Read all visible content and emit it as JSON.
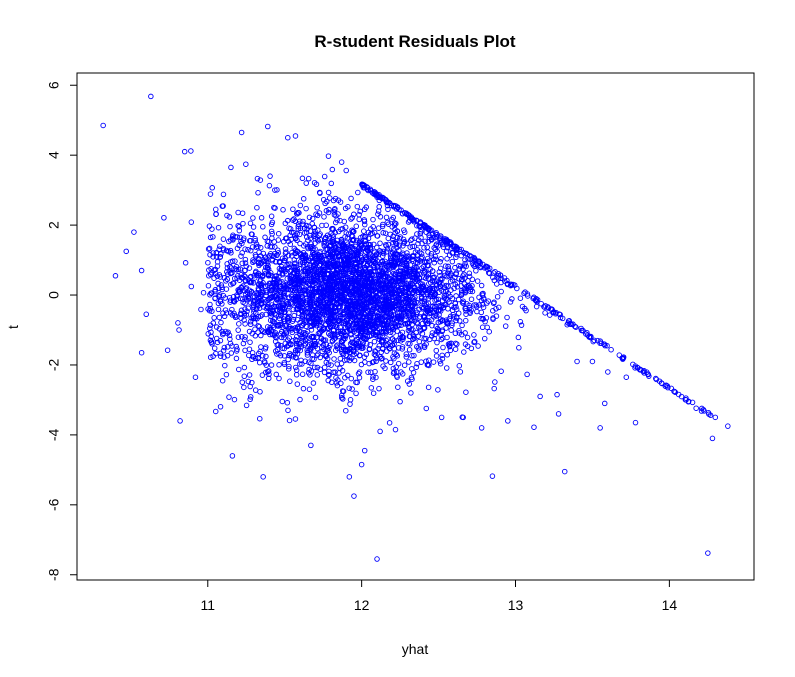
{
  "chart_data": {
    "type": "scatter",
    "title": "R-student Residuals Plot",
    "xlabel": "yhat",
    "ylabel": "t",
    "xlim": [
      10.15,
      14.55
    ],
    "ylim": [
      -8.15,
      6.35
    ],
    "x_ticks": [
      11,
      12,
      13,
      14
    ],
    "y_ticks": [
      -8,
      -6,
      -4,
      -2,
      0,
      2,
      4,
      6
    ],
    "marker_color": "#0000ff",
    "background": "#ffffff",
    "grid": false,
    "legend": "none",
    "upper_boundary_line": {
      "x_start": 12.0,
      "t_start": 3.2,
      "x_end": 14.3,
      "t_end": -3.5
    },
    "points": [
      [
        10.32,
        4.85
      ],
      [
        10.63,
        5.68
      ],
      [
        11.22,
        4.65
      ],
      [
        11.39,
        4.82
      ],
      [
        11.52,
        4.5
      ],
      [
        11.57,
        4.55
      ],
      [
        10.85,
        4.1
      ],
      [
        10.89,
        4.12
      ],
      [
        11.64,
        3.2
      ],
      [
        11.87,
        3.8
      ],
      [
        10.4,
        0.55
      ],
      [
        10.47,
        1.25
      ],
      [
        10.52,
        1.8
      ],
      [
        10.57,
        0.7
      ],
      [
        10.6,
        -0.55
      ],
      [
        10.57,
        -1.65
      ],
      [
        10.92,
        -2.35
      ],
      [
        10.82,
        -3.6
      ],
      [
        11.16,
        -4.6
      ],
      [
        11.36,
        -5.2
      ],
      [
        11.67,
        -4.3
      ],
      [
        11.92,
        -5.2
      ],
      [
        11.95,
        -5.75
      ],
      [
        12.0,
        -4.85
      ],
      [
        12.02,
        -4.45
      ],
      [
        12.12,
        -3.9
      ],
      [
        12.1,
        -7.55
      ],
      [
        12.22,
        -3.85
      ],
      [
        12.85,
        -5.18
      ],
      [
        13.32,
        -5.05
      ],
      [
        13.12,
        -3.78
      ],
      [
        13.55,
        -3.8
      ],
      [
        13.58,
        -3.1
      ],
      [
        13.78,
        -3.65
      ],
      [
        14.25,
        -7.38
      ],
      [
        14.28,
        -4.1
      ],
      [
        14.38,
        -3.75
      ],
      [
        12.95,
        -3.6
      ],
      [
        12.78,
        -3.8
      ],
      [
        12.52,
        -3.5
      ],
      [
        12.66,
        -3.5
      ],
      [
        13.16,
        -2.9
      ],
      [
        13.28,
        -3.4
      ],
      [
        13.27,
        -2.85
      ],
      [
        13.6,
        -2.2
      ],
      [
        13.72,
        -2.35
      ],
      [
        13.5,
        -1.9
      ],
      [
        13.4,
        -1.9
      ],
      [
        12.25,
        -3.05
      ],
      [
        12.32,
        -2.8
      ]
    ]
  }
}
